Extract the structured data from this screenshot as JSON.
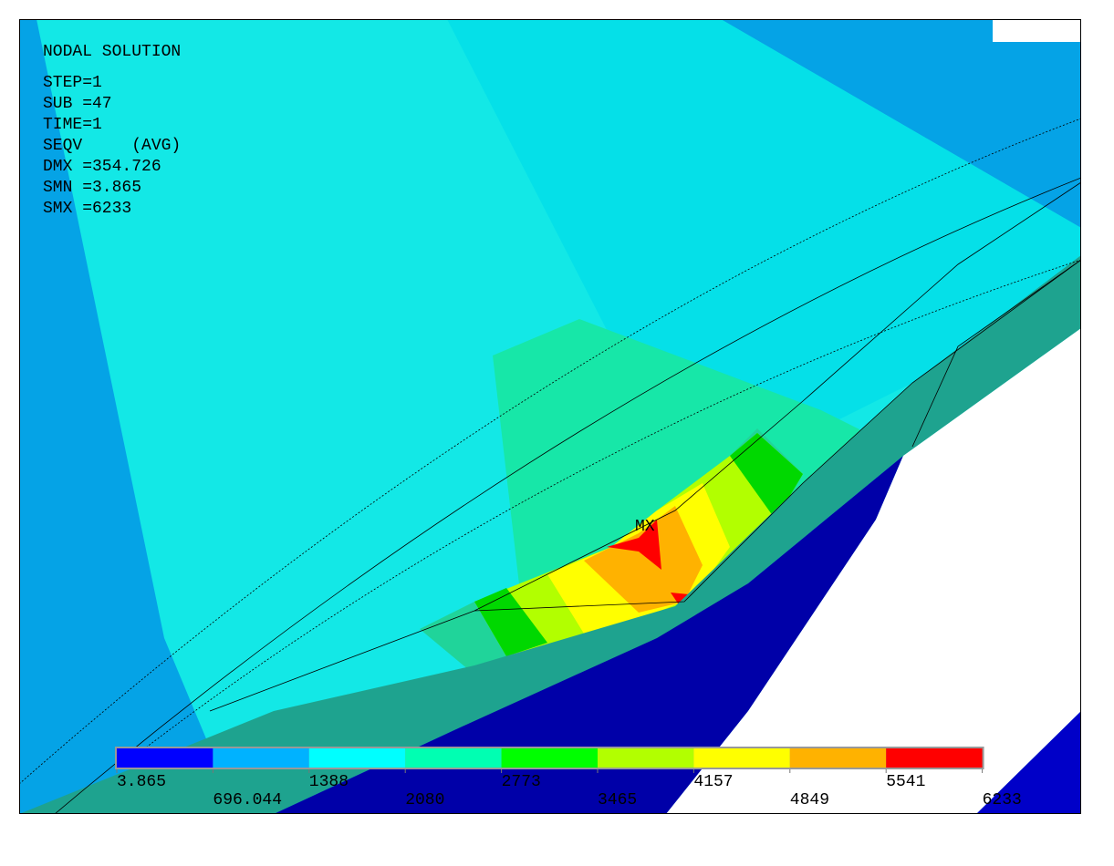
{
  "header": {
    "lines": [
      "NODAL SOLUTION",
      "STEP=1",
      "SUB =47",
      "TIME=1",
      "SEQV     (AVG)",
      "DMX =354.726",
      "SMN =3.865",
      "SMX =6233"
    ]
  },
  "marker": {
    "label": "MX"
  },
  "legend": {
    "values": [
      3.865,
      696.044,
      1388,
      2080,
      2773,
      3465,
      4157,
      4849,
      5541,
      6233
    ],
    "colors": [
      "#0000ff",
      "#00b2ff",
      "#00ffff",
      "#00ffb2",
      "#00ff00",
      "#b2ff00",
      "#ffff00",
      "#ffb200",
      "#ff0000"
    ]
  }
}
